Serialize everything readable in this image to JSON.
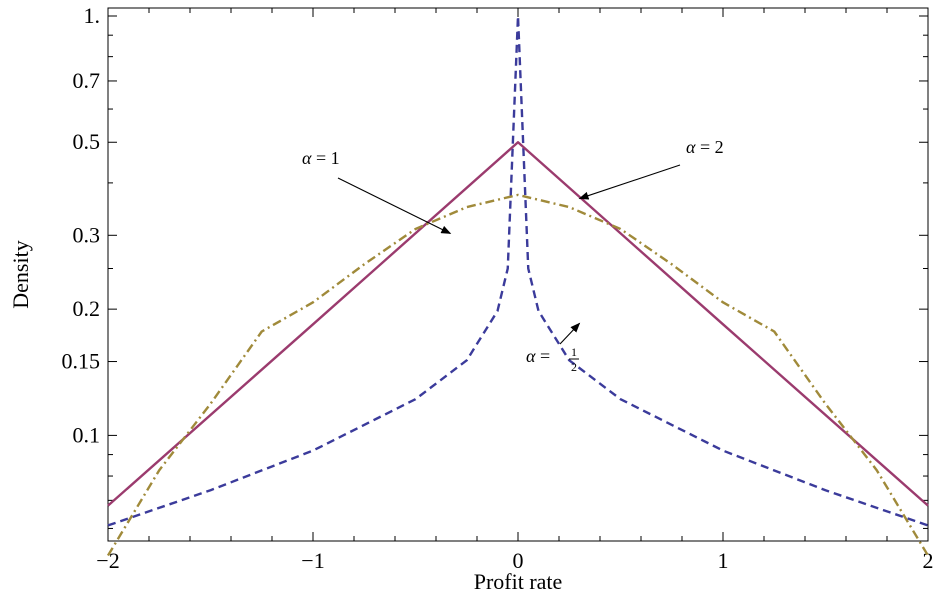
{
  "chart_data": {
    "type": "line",
    "title": "",
    "xlabel": "Profit rate",
    "ylabel": "Density",
    "xlim": [
      -2,
      2
    ],
    "ylim": [
      0.056,
      1.0
    ],
    "y_scale": "log",
    "grid": false,
    "x_ticks": [
      -2,
      -1,
      0,
      1,
      2
    ],
    "x_tick_labels": [
      "−2",
      "−1",
      "0",
      "1",
      "2"
    ],
    "y_ticks": [
      0.1,
      0.15,
      0.2,
      0.3,
      0.5,
      0.7,
      1.0
    ],
    "y_tick_labels": [
      "0.1",
      "0.15",
      "0.2",
      "0.3",
      "0.5",
      "0.7",
      "1."
    ],
    "series": [
      {
        "alpha": "1/2",
        "color": "#3b3b9b",
        "style": "dashed",
        "x": [
          -2,
          -1.5,
          -1,
          -0.5,
          -0.25,
          -0.1,
          -0.05,
          0,
          0.05,
          0.1,
          0.25,
          0.5,
          1,
          1.5,
          2
        ],
        "y": [
          0.061,
          0.074,
          0.092,
          0.122,
          0.151,
          0.198,
          0.25,
          1.0,
          0.25,
          0.198,
          0.151,
          0.122,
          0.092,
          0.074,
          0.061
        ]
      },
      {
        "alpha": "1",
        "color": "#9b3b6e",
        "style": "solid",
        "x": [
          -2,
          -1,
          0,
          1,
          2
        ],
        "y": [
          0.068,
          0.184,
          0.5,
          0.184,
          0.068
        ]
      },
      {
        "alpha": "2",
        "color": "#a08a3a",
        "style": "dashdot",
        "x": [
          -2,
          -1.75,
          -1.5,
          -1.25,
          -1,
          -0.75,
          -0.5,
          -0.25,
          0,
          0.25,
          0.5,
          0.75,
          1,
          1.25,
          1.5,
          1.75,
          2
        ],
        "y": [
          0.0517,
          0.0826,
          0.1189,
          0.1769,
          0.2076,
          0.2559,
          0.3106,
          0.3502,
          0.3745,
          0.3502,
          0.3106,
          0.2559,
          0.2076,
          0.1769,
          0.1189,
          0.0826,
          0.0517
        ]
      }
    ],
    "annotations": [
      {
        "id": "a1",
        "text_alpha": "α",
        "text_eq": " = 1",
        "points_to": {
          "x": -0.33,
          "y": 0.303
        }
      },
      {
        "id": "a2",
        "text_alpha": "α",
        "text_eq": " = 2",
        "points_to": {
          "x": 0.3,
          "y": 0.367
        }
      },
      {
        "id": "a3",
        "text_alpha": "α",
        "text_eq": " = ",
        "frac_num": "1",
        "frac_den": "2",
        "points_to": {
          "x": 0.3,
          "y": 0.185
        }
      }
    ]
  }
}
